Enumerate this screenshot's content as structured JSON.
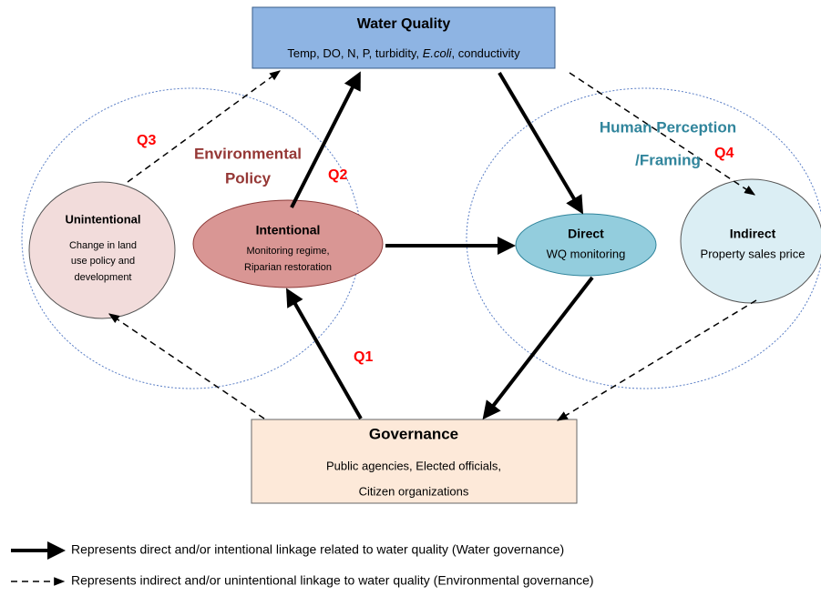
{
  "water_quality": {
    "title": "Water Quality",
    "subtitle": [
      "Temp, DO, N, P, turbidity, ",
      "E.coli",
      ", conductivity"
    ]
  },
  "environmental_policy": {
    "label": [
      "Environmental",
      "Policy"
    ]
  },
  "human_perception": {
    "label": [
      "Human Perception",
      "/Framing"
    ]
  },
  "unintentional": {
    "title": "Unintentional",
    "lines": [
      "Change in land",
      "use policy and",
      "development"
    ]
  },
  "intentional": {
    "title": "Intentional",
    "lines": [
      "Monitoring  regime,",
      "Riparian restoration"
    ]
  },
  "direct": {
    "title": "Direct",
    "lines": [
      "WQ  monitoring"
    ]
  },
  "indirect": {
    "title": "Indirect",
    "lines": [
      "Property sales price"
    ]
  },
  "governance": {
    "title": "Governance",
    "lines": [
      "Public agencies, Elected officials,",
      "Citizen organizations"
    ]
  },
  "questions": [
    "Q1",
    "Q2",
    "Q3",
    "Q4"
  ],
  "legend": [
    "Represents direct and/or intentional linkage related to water quality (Water governance)",
    "Represents indirect and/or unintentional linkage to water quality (Environmental governance)"
  ]
}
